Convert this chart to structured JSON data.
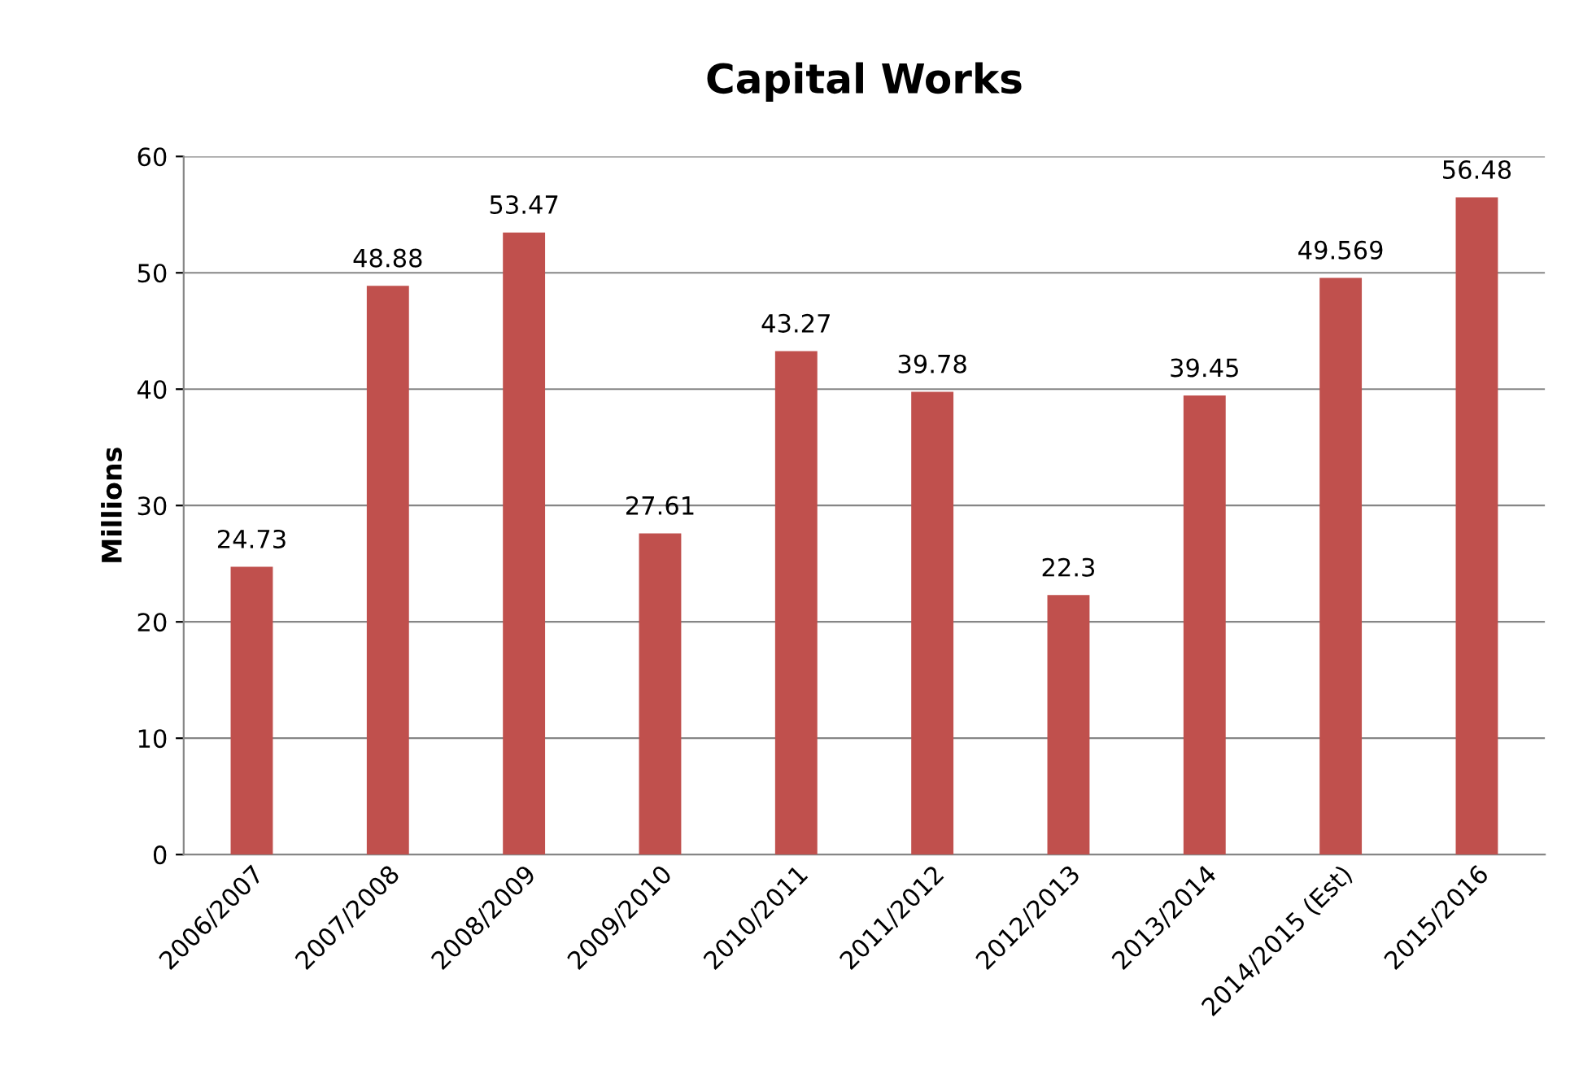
{
  "chart_data": {
    "type": "bar",
    "title": "Capital Works",
    "ylabel": "Millions",
    "categories": [
      "2006/2007",
      "2007/2008",
      "2008/2009",
      "2009/2010",
      "2010/2011",
      "2011/2012",
      "2012/2013",
      "2013/2014",
      "2014/2015 (Est)",
      "2015/2016"
    ],
    "values": [
      24.73,
      48.88,
      53.47,
      27.61,
      43.27,
      39.78,
      22.3,
      39.45,
      49.569,
      56.48
    ],
    "color": "#c0504d",
    "ylim": [
      0,
      60
    ],
    "yticks": [
      0,
      10,
      20,
      30,
      40,
      50,
      60
    ],
    "grid": "y",
    "data_labels": true
  }
}
